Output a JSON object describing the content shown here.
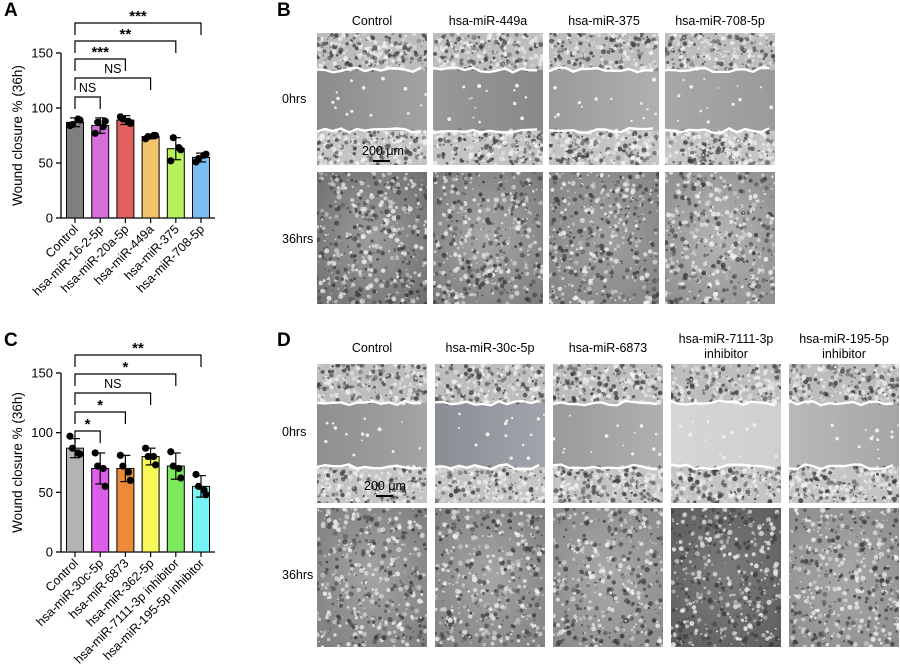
{
  "panels": {
    "A": "A",
    "B": "B",
    "C": "C",
    "D": "D"
  },
  "chart_data": [
    {
      "panel": "A",
      "type": "bar",
      "ylabel": "Wound closure % (36h)",
      "ylim": [
        0,
        150
      ],
      "yticks": [
        0,
        50,
        100,
        150
      ],
      "categories": [
        "Control",
        "hsa-miR-16-2-5p",
        "hsa-miR-20a-5p",
        "hsa-miR-449a",
        "hsa-miR-375",
        "hsa-miR-708-5p"
      ],
      "values": [
        87,
        84,
        89,
        74,
        63,
        55
      ],
      "sd": [
        4,
        7,
        4,
        2,
        10,
        4
      ],
      "points": [
        [
          84,
          89,
          85,
          90
        ],
        [
          77,
          88,
          87,
          83
        ],
        [
          92,
          86,
          90,
          88
        ],
        [
          72,
          75,
          74,
          75
        ],
        [
          52,
          62,
          73,
          64
        ],
        [
          51,
          58,
          54,
          57
        ]
      ],
      "colors": [
        "#7f7f7f",
        "#d46fd8",
        "#e06060",
        "#f3c26c",
        "#b7f05a",
        "#79bdf2"
      ],
      "significance": [
        {
          "from": 0,
          "to": 1,
          "label": "NS"
        },
        {
          "from": 0,
          "to": 3,
          "label": "NS"
        },
        {
          "from": 0,
          "to": 2,
          "label": "***"
        },
        {
          "from": 0,
          "to": 4,
          "label": "**"
        },
        {
          "from": 0,
          "to": 5,
          "label": "***"
        }
      ]
    },
    {
      "panel": "C",
      "type": "bar",
      "ylabel": "Wound closure % (36h)",
      "ylim": [
        0,
        150
      ],
      "yticks": [
        0,
        50,
        100,
        150
      ],
      "categories": [
        "Control",
        "hsa-miR-30c-5p",
        "hsa-miR-6873",
        "hsa-miR-362-5p",
        "hsa-miR-7111-3p inhibitor",
        "hsa-miR-195-5p inhibitor"
      ],
      "values": [
        87,
        70,
        70,
        80,
        72,
        55
      ],
      "sd": [
        8,
        13,
        11,
        7,
        11,
        9
      ],
      "points": [
        [
          97,
          82,
          87,
          83
        ],
        [
          83,
          55,
          72,
          70
        ],
        [
          81,
          60,
          72,
          67
        ],
        [
          87,
          73,
          80,
          80
        ],
        [
          84,
          62,
          72,
          70
        ],
        [
          65,
          48,
          55,
          52
        ]
      ],
      "colors": [
        "#b3b3b3",
        "#dd5ee9",
        "#eb8b37",
        "#f7f75a",
        "#7ce85c",
        "#74f4f4"
      ],
      "significance": [
        {
          "from": 0,
          "to": 1,
          "label": "*"
        },
        {
          "from": 0,
          "to": 2,
          "label": "*"
        },
        {
          "from": 0,
          "to": 3,
          "label": "NS"
        },
        {
          "from": 0,
          "to": 4,
          "label": "*"
        },
        {
          "from": 0,
          "to": 5,
          "label": "**"
        }
      ]
    }
  ],
  "micrograph_panels": {
    "B": {
      "columns": [
        "Control",
        "hsa-miR-449a",
        "hsa-miR-375",
        "hsa-miR-708-5p"
      ],
      "rows": [
        "0hrs",
        "36hrs"
      ],
      "scalebar": "200 μm"
    },
    "D": {
      "columns": [
        [
          "Control"
        ],
        [
          "hsa-miR-30c-5p"
        ],
        [
          "hsa-miR-6873"
        ],
        [
          "hsa-miR-7111-3p",
          "inhibitor"
        ],
        [
          "hsa-miR-195-5p",
          "inhibitor"
        ]
      ],
      "rows": [
        "0hrs",
        "36hrs"
      ],
      "scalebar": "200 μm"
    }
  }
}
